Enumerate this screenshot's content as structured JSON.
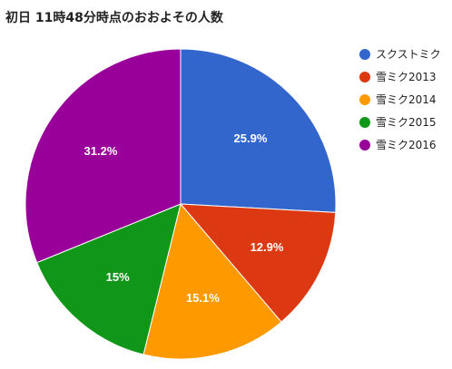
{
  "chart_data": {
    "type": "pie",
    "title": "初日 11時48分時点のおおよその人数",
    "legend_position": "right",
    "start_angle_deg": 0,
    "direction": "clockwise",
    "slices": [
      {
        "label": "スクストミク",
        "value": 25.9,
        "display": "25.9%",
        "color": "#3366cc"
      },
      {
        "label": "雪ミク2013",
        "value": 12.9,
        "display": "12.9%",
        "color": "#dc3912"
      },
      {
        "label": "雪ミク2014",
        "value": 15.1,
        "display": "15.1%",
        "color": "#ff9900"
      },
      {
        "label": "雪ミク2015",
        "value": 15.0,
        "display": "15%",
        "color": "#109618"
      },
      {
        "label": "雪ミク2016",
        "value": 31.2,
        "display": "31.2%",
        "color": "#990099"
      }
    ]
  }
}
